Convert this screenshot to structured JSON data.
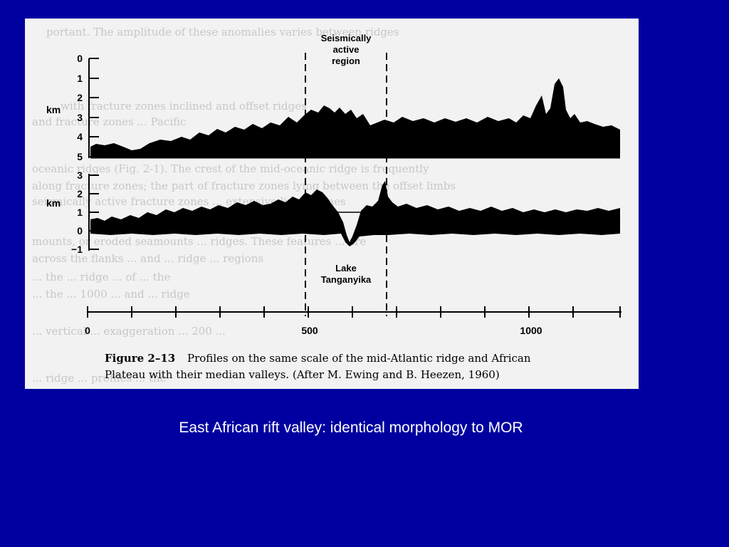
{
  "slide": {
    "background_color": "#0000a0",
    "caption": "East African rift valley: identical morphology to MOR"
  },
  "figure": {
    "background_color": "#f2f2f2",
    "region_label": [
      "Seismically",
      "active",
      "region"
    ],
    "lake_label": [
      "Lake",
      "Tanganyika"
    ],
    "upper_profile": {
      "unit": "km",
      "ticks": [
        "0",
        "1",
        "2",
        "3",
        "4",
        "5"
      ]
    },
    "lower_profile": {
      "unit": "km",
      "ticks": [
        "3",
        "2",
        "1",
        "0",
        "−1"
      ]
    },
    "distance_axis": {
      "ticks": [
        "0",
        "500",
        "1000"
      ]
    },
    "caption_label": "Figure 2–13",
    "caption_line1": "Profiles on the same scale of the mid-Atlantic ridge and African",
    "caption_line2": "Plateau with their median valleys. (After M. Ewing and B. Heezen, 1960)",
    "bleed_through_text": [
      "portant. The amplitude of these anomalies varies between ridges",
      "with fracture zones inclined and offset ridges",
      "and fracture zones ... Pacific",
      "oceanic ridges (Fig. 2-1). The crest of the mid-oceanic ridge is frequently",
      "along fracture zones; the part of fracture zones lying between the offset limbs",
      "seismically active fracture zones ... extensive linear zones",
      "mounts, or eroded seamounts ... ridges. These features ... are",
      "across the flanks ... and ... ridge ... regions",
      "... the ... ridge ... of ... the",
      "... the ... 1000 ... and ... ridge",
      "... vertical ... exaggeration ... 200 ...",
      "... ridge ... profiles ... the"
    ]
  }
}
